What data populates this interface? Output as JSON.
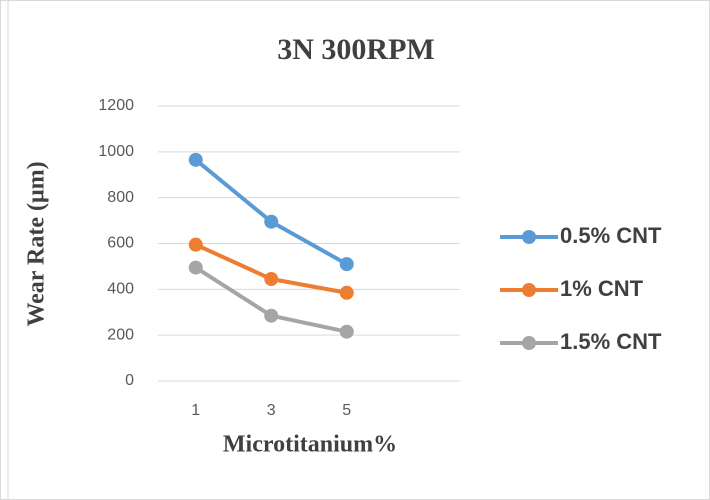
{
  "chart_data": {
    "type": "line",
    "title": "3N 300RPM",
    "x_label": "Microtitanium%",
    "y_label": "Wear Rate (μm)",
    "categories": [
      "1",
      "3",
      "5",
      null
    ],
    "series": [
      {
        "name": "0.5% CNT",
        "color": "#5b9bd5",
        "values": [
          965,
          695,
          510,
          null
        ]
      },
      {
        "name": "1% CNT",
        "color": "#ed7d31",
        "values": [
          595,
          445,
          385,
          null
        ]
      },
      {
        "name": "1.5% CNT",
        "color": "#a5a5a5",
        "values": [
          495,
          285,
          215,
          null
        ]
      }
    ],
    "ylim": [
      0,
      1200
    ],
    "yticks": [
      0,
      200,
      400,
      600,
      800,
      1000,
      1200
    ],
    "grid": true,
    "legend": "right"
  }
}
